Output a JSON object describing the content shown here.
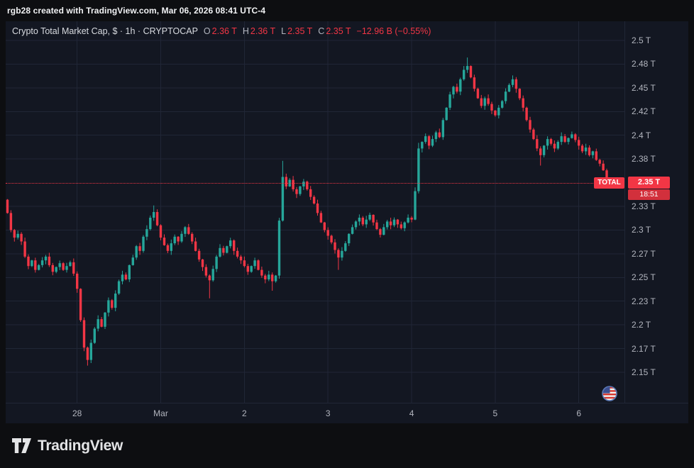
{
  "topbar": {
    "text": "rgb28 created with TradingView.com, Mar 06, 2026 08:41 UTC-4"
  },
  "legend": {
    "title": "Crypto Total Market Cap, $ · 1h · CRYPTOCAP",
    "ohlc": [
      {
        "label": "O",
        "value": "2.36 T"
      },
      {
        "label": "H",
        "value": "2.36 T"
      },
      {
        "label": "L",
        "value": "2.35 T"
      },
      {
        "label": "C",
        "value": "2.35 T"
      }
    ],
    "change": "−12.96 B (−0.55%)"
  },
  "price_line": {
    "value": 2.35,
    "label": "2.35 T",
    "tag": "TOTAL",
    "countdown": "18:51"
  },
  "price_axis": {
    "labels": [
      {
        "text": "2.5 T",
        "price": 2.5
      },
      {
        "text": "2.48 T",
        "price": 2.475
      },
      {
        "text": "2.45 T",
        "price": 2.45
      },
      {
        "text": "2.42 T",
        "price": 2.425
      },
      {
        "text": "2.4 T",
        "price": 2.4
      },
      {
        "text": "2.38 T",
        "price": 2.375
      },
      {
        "text": "2.33 T",
        "price": 2.325
      },
      {
        "text": "2.3 T",
        "price": 2.3
      },
      {
        "text": "2.27 T",
        "price": 2.275
      },
      {
        "text": "2.25 T",
        "price": 2.25
      },
      {
        "text": "2.23 T",
        "price": 2.225
      },
      {
        "text": "2.2 T",
        "price": 2.2
      },
      {
        "text": "2.17 T",
        "price": 2.175
      },
      {
        "text": "2.15 T",
        "price": 2.15
      }
    ]
  },
  "time_axis": {
    "labels": [
      {
        "text": "28",
        "index": 20
      },
      {
        "text": "Mar",
        "index": 44
      },
      {
        "text": "2",
        "index": 68
      },
      {
        "text": "3",
        "index": 92
      },
      {
        "text": "4",
        "index": 116
      },
      {
        "text": "5",
        "index": 140
      },
      {
        "text": "6",
        "index": 164
      }
    ]
  },
  "colors": {
    "page_bg": "#0d0e11",
    "pane_bg": "#131722",
    "grid": "#202636",
    "up": "#26a69a",
    "down": "#f23645",
    "axis_text": "#b2b5be",
    "badge_bg": "#f23645",
    "countdown_bg": "#d2303c"
  },
  "logo": {
    "text": "TradingView"
  },
  "chart_data": {
    "type": "candlestick",
    "title": "Crypto Total Market Cap (CRYPTOCAP:TOTAL)",
    "interval": "1h",
    "unit": "T (trillion USD)",
    "start_time": "Feb 27 04:00",
    "end_time": "Mar 6 08:00",
    "ylim": [
      2.14,
      2.52
    ],
    "x_axis_labels": [
      "28",
      "Mar",
      "2",
      "3",
      "4",
      "5",
      "6"
    ],
    "last_candle": {
      "open": 2.363,
      "high": 2.363,
      "low": 2.348,
      "close": 2.35,
      "change": "−12.96 B",
      "change_pct": "−0.55%"
    },
    "open_first": 2.332,
    "closes": [
      2.318,
      2.3,
      2.292,
      2.296,
      2.288,
      2.272,
      2.262,
      2.268,
      2.258,
      2.263,
      2.268,
      2.272,
      2.263,
      2.256,
      2.261,
      2.265,
      2.258,
      2.262,
      2.266,
      2.254,
      2.238,
      2.205,
      2.176,
      2.163,
      2.181,
      2.196,
      2.206,
      2.198,
      2.213,
      2.226,
      2.218,
      2.233,
      2.246,
      2.253,
      2.248,
      2.263,
      2.271,
      2.283,
      2.278,
      2.293,
      2.301,
      2.313,
      2.319,
      2.305,
      2.292,
      2.284,
      2.278,
      2.286,
      2.293,
      2.288,
      2.296,
      2.303,
      2.296,
      2.288,
      2.278,
      2.269,
      2.261,
      2.252,
      2.247,
      2.259,
      2.272,
      2.281,
      2.276,
      2.283,
      2.289,
      2.278,
      2.272,
      2.268,
      2.262,
      2.256,
      2.262,
      2.268,
      2.258,
      2.252,
      2.248,
      2.253,
      2.246,
      2.252,
      2.31,
      2.356,
      2.346,
      2.353,
      2.343,
      2.338,
      2.346,
      2.351,
      2.343,
      2.335,
      2.328,
      2.318,
      2.308,
      2.3,
      2.294,
      2.287,
      2.279,
      2.271,
      2.278,
      2.286,
      2.296,
      2.303,
      2.309,
      2.313,
      2.306,
      2.311,
      2.316,
      2.308,
      2.301,
      2.295,
      2.303,
      2.309,
      2.305,
      2.311,
      2.306,
      2.302,
      2.308,
      2.313,
      2.311,
      2.341,
      2.386,
      2.393,
      2.399,
      2.389,
      2.396,
      2.403,
      2.398,
      2.416,
      2.429,
      2.443,
      2.451,
      2.446,
      2.459,
      2.469,
      2.473,
      2.461,
      2.449,
      2.439,
      2.431,
      2.439,
      2.433,
      2.426,
      2.421,
      2.429,
      2.436,
      2.446,
      2.453,
      2.459,
      2.449,
      2.439,
      2.429,
      2.416,
      2.406,
      2.396,
      2.386,
      2.379,
      2.389,
      2.396,
      2.391,
      2.386,
      2.393,
      2.399,
      2.393,
      2.397,
      2.401,
      2.395,
      2.389,
      2.383,
      2.387,
      2.379,
      2.383,
      2.374,
      2.37,
      2.363,
      2.35
    ],
    "wick_overrides": {
      "23": {
        "low": 2.157
      },
      "42": {
        "high": 2.326
      },
      "58": {
        "low": 2.228
      },
      "76": {
        "low": 2.236
      },
      "79": {
        "high": 2.373
      },
      "95": {
        "low": 2.258
      },
      "118": {
        "high": 2.392
      },
      "132": {
        "high": 2.482
      },
      "153": {
        "low": 2.368
      },
      "172": {
        "low": 2.348
      }
    }
  }
}
